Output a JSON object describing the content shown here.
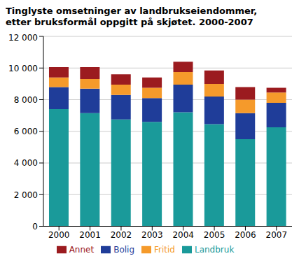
{
  "chart_data": {
    "type": "bar",
    "title": "Tinglyste omsetninger av landbrukseiendommer, etter bruksformål oppgitt på skjøtet. 2000-2007",
    "categories": [
      "2000",
      "2001",
      "2002",
      "2003",
      "2004",
      "2005",
      "2006",
      "2007"
    ],
    "series": [
      {
        "name": "Landbruk",
        "color": "#1a9a9a",
        "values": [
          7400,
          7150,
          6750,
          6600,
          7200,
          6450,
          5500,
          6250
        ]
      },
      {
        "name": "Bolig",
        "color": "#1f3d99",
        "values": [
          1400,
          1550,
          1550,
          1500,
          1750,
          1750,
          1650,
          1550
        ]
      },
      {
        "name": "Fritid",
        "color": "#f59a2b",
        "values": [
          600,
          600,
          650,
          650,
          800,
          800,
          850,
          650
        ]
      },
      {
        "name": "Annet",
        "color": "#9b1b1f",
        "values": [
          650,
          750,
          650,
          650,
          650,
          850,
          800,
          300
        ]
      }
    ],
    "stacked": true,
    "ylim": [
      0,
      12000
    ],
    "yticks": [
      0,
      {
        "value": 2000,
        "label": "2 000"
      },
      {
        "value": 4000,
        "label": "4 000"
      },
      {
        "value": 6000,
        "label": "6 000"
      },
      {
        "value": 8000,
        "label": "8 000"
      },
      {
        "value": 10000,
        "label": "10 000"
      },
      {
        "value": 12000,
        "label": "12 000"
      }
    ],
    "grid": true,
    "legend": "bottom"
  }
}
